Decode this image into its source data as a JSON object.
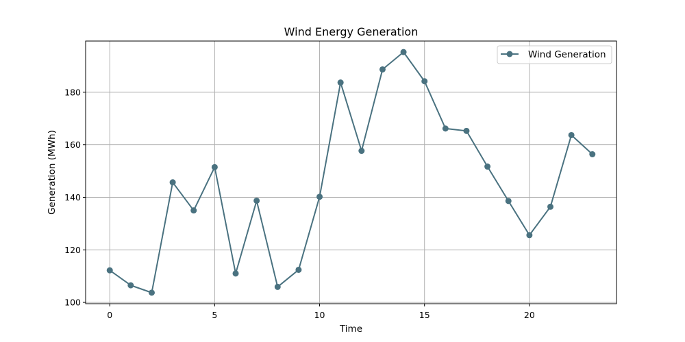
{
  "chart_data": {
    "type": "line",
    "title": "Wind Energy Generation",
    "xlabel": "Time",
    "ylabel": "Generation (MWh)",
    "xlim": [
      -1.15,
      24.15
    ],
    "ylim": [
      99.5,
      199.5
    ],
    "xticks": [
      0,
      5,
      10,
      15,
      20
    ],
    "yticks": [
      100,
      120,
      140,
      160,
      180
    ],
    "grid": true,
    "legend_position": "top-right",
    "color": "#4a7280",
    "x": [
      0,
      1,
      2,
      3,
      4,
      5,
      6,
      7,
      8,
      9,
      10,
      11,
      12,
      13,
      14,
      15,
      16,
      17,
      18,
      19,
      20,
      21,
      22,
      23
    ],
    "series": [
      {
        "name": "Wind Generation",
        "marker": "circle",
        "values": [
          112.2,
          106.5,
          103.7,
          145.7,
          135.0,
          151.5,
          111.0,
          138.7,
          105.9,
          112.4,
          140.2,
          183.7,
          157.7,
          188.7,
          195.3,
          184.2,
          166.2,
          165.3,
          151.7,
          138.6,
          125.6,
          136.4,
          163.7,
          156.4
        ]
      }
    ]
  }
}
